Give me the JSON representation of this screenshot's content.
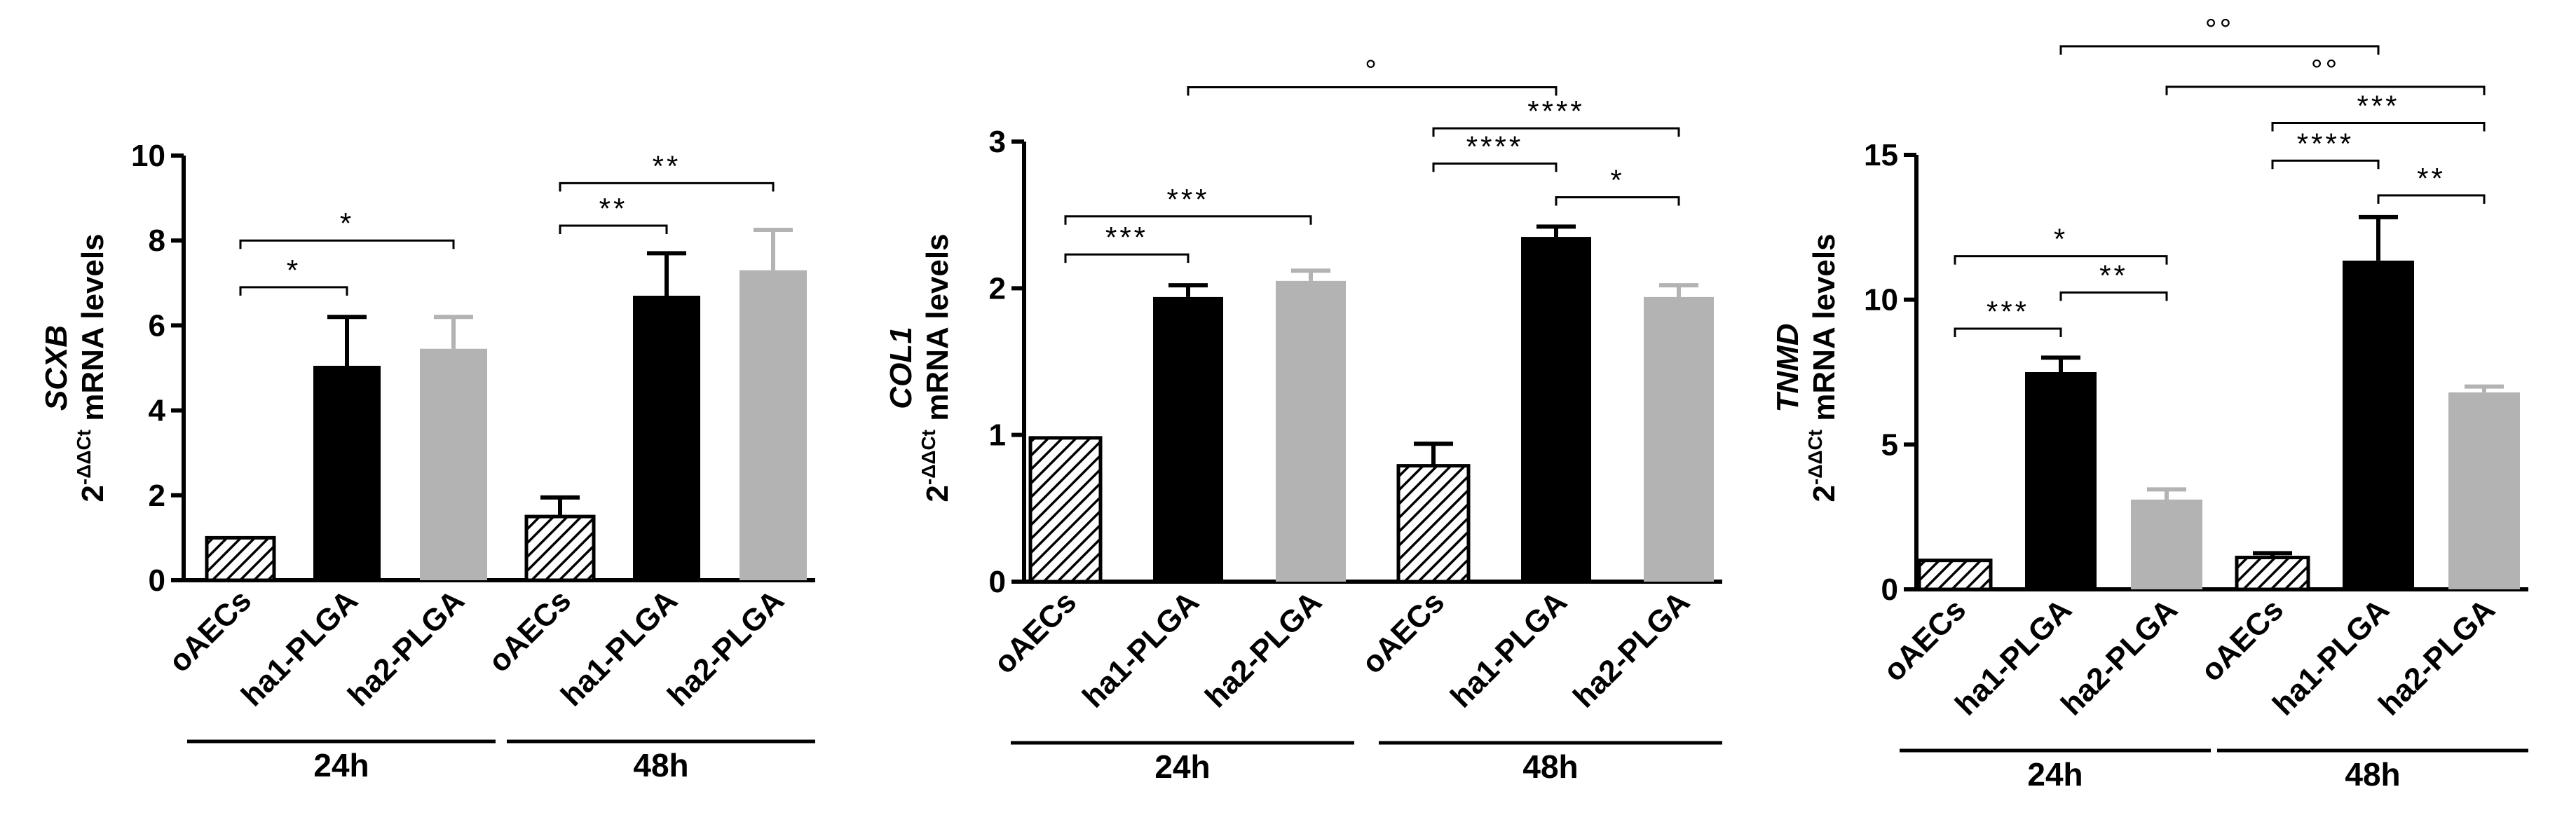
{
  "chart_data": [
    {
      "type": "bar",
      "gene": "SCXB",
      "ylabel_gene": "SCXB",
      "ylabel_prefix": "2",
      "ylabel_sup": "-ΔΔCt",
      "ylabel_suffix": "mRNA levels",
      "ylim": [
        0,
        10
      ],
      "yticks": [
        0,
        2,
        4,
        6,
        8,
        10
      ],
      "categories": [
        "oAECs",
        "ha1-PLGA",
        "ha2-PLGA",
        "oAECs",
        "ha1-PLGA",
        "ha2-PLGA"
      ],
      "groups": [
        {
          "label": "24h",
          "from": 0,
          "to": 2
        },
        {
          "label": "48h",
          "from": 3,
          "to": 5
        }
      ],
      "values": [
        1.0,
        5.05,
        5.45,
        1.5,
        6.7,
        7.3
      ],
      "errors": [
        0,
        1.15,
        0.75,
        0.45,
        1.0,
        0.95
      ],
      "styles": [
        "hatched",
        "black",
        "gray",
        "hatched",
        "black",
        "gray"
      ],
      "significance": [
        {
          "from": 0,
          "to": 1,
          "label": "*",
          "y": 6.9
        },
        {
          "from": 0,
          "to": 2,
          "label": "*",
          "y": 8.0
        },
        {
          "from": 3,
          "to": 4,
          "label": "**",
          "y": 8.35
        },
        {
          "from": 3,
          "to": 5,
          "label": "**",
          "y": 9.35
        }
      ]
    },
    {
      "type": "bar",
      "gene": "COL1",
      "ylabel_gene": "COL1",
      "ylabel_prefix": "2",
      "ylabel_sup": "-ΔΔCt",
      "ylabel_suffix": "mRNA levels",
      "ylim": [
        0,
        3
      ],
      "yticks": [
        0,
        1,
        2,
        3
      ],
      "categories": [
        "oAECs",
        "ha1-PLGA",
        "ha2-PLGA",
        "oAECs",
        "ha1-PLGA",
        "ha2-PLGA"
      ],
      "groups": [
        {
          "label": "24h",
          "from": 0,
          "to": 2
        },
        {
          "label": "48h",
          "from": 3,
          "to": 5
        }
      ],
      "values": [
        0.98,
        1.94,
        2.05,
        0.79,
        2.35,
        1.94
      ],
      "errors": [
        0,
        0.08,
        0.07,
        0.15,
        0.07,
        0.08
      ],
      "styles": [
        "hatched",
        "black",
        "gray",
        "hatched",
        "black",
        "gray"
      ],
      "significance": [
        {
          "from": 0,
          "to": 1,
          "label": "***",
          "y": 2.23
        },
        {
          "from": 0,
          "to": 2,
          "label": "***",
          "y": 2.49
        },
        {
          "from": 3,
          "to": 4,
          "label": "****",
          "y": 2.85
        },
        {
          "from": 4,
          "to": 5,
          "label": "*",
          "y": 2.62
        },
        {
          "from": 3,
          "to": 5,
          "label": "****",
          "y": 3.09
        },
        {
          "from": 1,
          "to": 4,
          "label": "°",
          "y": 3.37
        }
      ]
    },
    {
      "type": "bar",
      "gene": "TNMD",
      "ylabel_gene": "TNMD",
      "ylabel_prefix": "2",
      "ylabel_sup": "-ΔΔCt",
      "ylabel_suffix": "mRNA levels",
      "ylim": [
        0,
        15
      ],
      "yticks": [
        0,
        5,
        10,
        15
      ],
      "categories": [
        "oAECs",
        "ha1-PLGA",
        "ha2-PLGA",
        "oAECs",
        "ha1-PLGA",
        "ha2-PLGA"
      ],
      "groups": [
        {
          "label": "24h",
          "from": 0,
          "to": 2
        },
        {
          "label": "48h",
          "from": 3,
          "to": 5
        }
      ],
      "values": [
        1.0,
        7.5,
        3.1,
        1.1,
        11.35,
        6.8
      ],
      "errors": [
        0,
        0.5,
        0.35,
        0.15,
        1.5,
        0.2
      ],
      "styles": [
        "hatched",
        "black",
        "gray",
        "hatched",
        "black",
        "gray"
      ],
      "significance": [
        {
          "from": 0,
          "to": 1,
          "label": "***",
          "y": 9.0
        },
        {
          "from": 1,
          "to": 2,
          "label": "**",
          "y": 10.25
        },
        {
          "from": 0,
          "to": 2,
          "label": "*",
          "y": 11.5
        },
        {
          "from": 4,
          "to": 5,
          "label": "**",
          "y": 13.6
        },
        {
          "from": 3,
          "to": 4,
          "label": "****",
          "y": 14.8
        },
        {
          "from": 3,
          "to": 5,
          "label": "***",
          "y": 16.1
        },
        {
          "from": 2,
          "to": 5,
          "label": "°°",
          "y": 17.35
        },
        {
          "from": 1,
          "to": 4,
          "label": "°°",
          "y": 18.75
        }
      ]
    }
  ],
  "colors": {
    "black_bar": "#000000",
    "gray_bar": "#b3b3b3",
    "hatch_line": "#000000"
  }
}
